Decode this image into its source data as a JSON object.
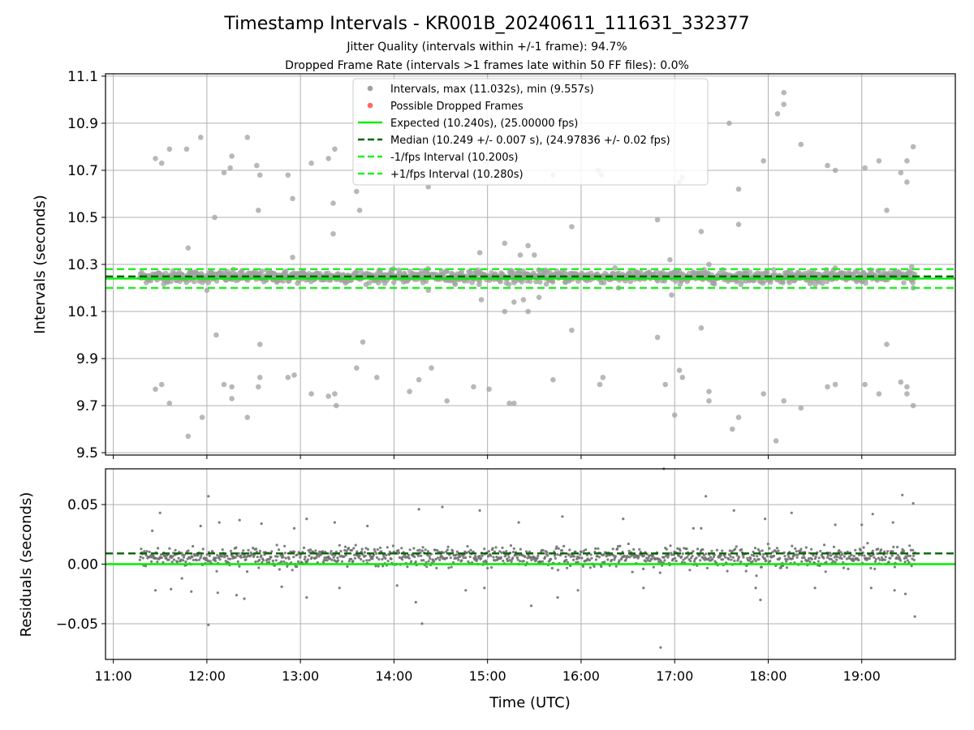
{
  "figure": {
    "title": "Timestamp Intervals - KR001B_20240611_111631_332377",
    "subtitle_1": "Jitter Quality (intervals within +/-1 frame): 94.7%",
    "subtitle_2": "Dropped Frame Rate (intervals >1 frames late within 50 FF files): 0.0%",
    "xlabel": "Time (UTC)"
  },
  "chart_data": [
    {
      "type": "scatter",
      "panel": "top",
      "ylabel": "Intervals (seconds)",
      "xlim": [
        "10:55",
        "20:00"
      ],
      "ylim": [
        9.49,
        11.11
      ],
      "xticks": [
        "11:00",
        "12:00",
        "13:00",
        "14:00",
        "15:00",
        "16:00",
        "17:00",
        "18:00",
        "19:00"
      ],
      "yticks": [
        "9.5",
        "9.7",
        "9.9",
        "10.1",
        "10.3",
        "10.5",
        "10.7",
        "10.9",
        "11.1"
      ],
      "ytick_values": [
        9.5,
        9.7,
        9.9,
        10.1,
        10.3,
        10.5,
        10.7,
        10.9,
        11.1
      ],
      "grid": true,
      "legend_position": "top-center",
      "legend": [
        {
          "label": "Intervals, max (11.032s), min (9.557s)",
          "marker": "dot",
          "color": "#a0a0a0"
        },
        {
          "label": "Possible Dropped Frames",
          "marker": "dot",
          "color": "#ff6666"
        },
        {
          "label": "Expected (10.240s), (25.00000 fps)",
          "marker": "solid",
          "color": "#00ee00"
        },
        {
          "label": "Median (10.249 +/- 0.007 s), (24.97836 +/- 0.02 fps)",
          "marker": "dashed",
          "color": "#006400"
        },
        {
          "label": "-1/fps Interval (10.200s)",
          "marker": "dashed",
          "color": "#22ee22"
        },
        {
          "label": "+1/fps Interval (10.280s)",
          "marker": "dashed",
          "color": "#22ee22"
        }
      ],
      "reference_lines": [
        {
          "y": 10.24,
          "style": "solid",
          "color": "#00ee00"
        },
        {
          "y": 10.249,
          "style": "dashed",
          "color": "#006400"
        },
        {
          "y": 10.2,
          "style": "dashed",
          "color": "#22ee22"
        },
        {
          "y": 10.28,
          "style": "dashed",
          "color": "#22ee22"
        }
      ],
      "start_time": "11:17",
      "end_time": "19:34",
      "point_color": "#a0a0a0",
      "core_band": {
        "center": 10.248,
        "spread": 0.035
      },
      "outliers": [
        [
          "11:27",
          10.75
        ],
        [
          "11:27",
          9.77
        ],
        [
          "11:31",
          10.73
        ],
        [
          "11:31",
          9.79
        ],
        [
          "11:36",
          10.79
        ],
        [
          "11:36",
          9.71
        ],
        [
          "11:47",
          10.79
        ],
        [
          "11:48",
          10.37
        ],
        [
          "11:48",
          9.57
        ],
        [
          "11:56",
          10.84
        ],
        [
          "11:57",
          9.65
        ],
        [
          "12:00",
          10.19
        ],
        [
          "12:05",
          10.5
        ],
        [
          "12:06",
          10.0
        ],
        [
          "12:11",
          10.69
        ],
        [
          "12:11",
          9.79
        ],
        [
          "12:15",
          10.71
        ],
        [
          "12:16",
          10.76
        ],
        [
          "12:16",
          9.78
        ],
        [
          "12:16",
          9.73
        ],
        [
          "12:26",
          10.84
        ],
        [
          "12:26",
          9.65
        ],
        [
          "12:32",
          10.72
        ],
        [
          "12:33",
          10.53
        ],
        [
          "12:33",
          9.78
        ],
        [
          "12:34",
          10.68
        ],
        [
          "12:34",
          9.82
        ],
        [
          "12:34",
          9.96
        ],
        [
          "12:52",
          10.68
        ],
        [
          "12:52",
          9.82
        ],
        [
          "12:55",
          10.58
        ],
        [
          "12:55",
          10.33
        ],
        [
          "12:56",
          9.83
        ],
        [
          "13:07",
          10.73
        ],
        [
          "13:07",
          9.75
        ],
        [
          "13:18",
          10.75
        ],
        [
          "13:18",
          9.74
        ],
        [
          "13:21",
          10.56
        ],
        [
          "13:21",
          10.43
        ],
        [
          "13:22",
          10.79
        ],
        [
          "13:22",
          9.75
        ],
        [
          "13:23",
          9.7
        ],
        [
          "13:36",
          10.61
        ],
        [
          "13:38",
          10.53
        ],
        [
          "13:40",
          9.97
        ],
        [
          "13:36",
          9.86
        ],
        [
          "13:49",
          9.82
        ],
        [
          "14:10",
          9.76
        ],
        [
          "14:16",
          9.81
        ],
        [
          "14:22",
          10.19
        ],
        [
          "14:22",
          10.63
        ],
        [
          "14:24",
          9.86
        ],
        [
          "14:34",
          9.72
        ],
        [
          "14:51",
          9.78
        ],
        [
          "14:55",
          10.35
        ],
        [
          "14:56",
          10.15
        ],
        [
          "15:01",
          9.77
        ],
        [
          "15:11",
          10.39
        ],
        [
          "15:11",
          10.1
        ],
        [
          "15:14",
          9.71
        ],
        [
          "15:17",
          10.14
        ],
        [
          "15:17",
          9.71
        ],
        [
          "15:21",
          10.34
        ],
        [
          "15:23",
          10.15
        ],
        [
          "15:26",
          10.38
        ],
        [
          "15:26",
          10.1
        ],
        [
          "15:30",
          10.34
        ],
        [
          "15:33",
          10.16
        ],
        [
          "15:42",
          10.68
        ],
        [
          "15:42",
          9.81
        ],
        [
          "15:54",
          10.46
        ],
        [
          "15:54",
          10.02
        ],
        [
          "16:11",
          10.7
        ],
        [
          "16:12",
          9.79
        ],
        [
          "16:13",
          10.68
        ],
        [
          "16:14",
          9.82
        ],
        [
          "16:24",
          10.2
        ],
        [
          "16:49",
          10.49
        ],
        [
          "16:49",
          9.99
        ],
        [
          "16:54",
          9.79
        ],
        [
          "16:57",
          10.32
        ],
        [
          "16:58",
          10.17
        ],
        [
          "17:00",
          9.66
        ],
        [
          "17:03",
          10.65
        ],
        [
          "17:03",
          9.85
        ],
        [
          "17:05",
          10.67
        ],
        [
          "17:05",
          9.82
        ],
        [
          "17:17",
          10.44
        ],
        [
          "17:17",
          10.03
        ],
        [
          "17:22",
          10.3
        ],
        [
          "17:22",
          9.76
        ],
        [
          "17:22",
          9.72
        ],
        [
          "17:35",
          10.9
        ],
        [
          "17:37",
          9.6
        ],
        [
          "17:41",
          10.62
        ],
        [
          "17:41",
          10.47
        ],
        [
          "17:41",
          9.65
        ],
        [
          "17:57",
          10.74
        ],
        [
          "17:57",
          9.75
        ],
        [
          "18:06",
          10.94
        ],
        [
          "18:05",
          9.55
        ],
        [
          "18:10",
          11.03
        ],
        [
          "18:10",
          10.98
        ],
        [
          "18:10",
          9.72
        ],
        [
          "18:21",
          10.81
        ],
        [
          "18:21",
          9.69
        ],
        [
          "18:38",
          10.72
        ],
        [
          "18:38",
          9.78
        ],
        [
          "18:43",
          10.7
        ],
        [
          "18:43",
          9.79
        ],
        [
          "19:02",
          10.71
        ],
        [
          "19:02",
          9.79
        ],
        [
          "19:11",
          10.74
        ],
        [
          "19:11",
          9.75
        ],
        [
          "19:16",
          10.53
        ],
        [
          "19:16",
          9.96
        ],
        [
          "19:25",
          10.69
        ],
        [
          "19:25",
          9.8
        ],
        [
          "19:29",
          10.74
        ],
        [
          "19:29",
          10.65
        ],
        [
          "19:29",
          9.78
        ],
        [
          "19:29",
          9.75
        ],
        [
          "19:33",
          10.8
        ],
        [
          "19:33",
          9.7
        ],
        [
          "19:33",
          10.2
        ],
        [
          "19:32",
          10.29
        ]
      ]
    },
    {
      "type": "scatter",
      "panel": "bottom",
      "ylabel": "Residuals (seconds)",
      "xlim": [
        "10:55",
        "20:00"
      ],
      "ylim": [
        -0.08,
        0.08
      ],
      "xticks": [
        "11:00",
        "12:00",
        "13:00",
        "14:00",
        "15:00",
        "16:00",
        "17:00",
        "18:00",
        "19:00"
      ],
      "yticks": [
        "−0.05",
        "0.00",
        "0.05"
      ],
      "ytick_values": [
        -0.05,
        0.0,
        0.05
      ],
      "grid": true,
      "reference_lines": [
        {
          "y": 0.0,
          "style": "solid",
          "color": "#00ee00"
        },
        {
          "y": 0.009,
          "style": "dashed",
          "color": "#006400"
        }
      ],
      "point_color": "#707070",
      "core_band": {
        "center": 0.006,
        "spread": 0.012
      },
      "outliers": [
        [
          "11:25",
          0.028
        ],
        [
          "11:30",
          0.043
        ],
        [
          "11:27",
          -0.022
        ],
        [
          "11:37",
          -0.021
        ],
        [
          "11:44",
          -0.012
        ],
        [
          "11:50",
          -0.023
        ],
        [
          "11:56",
          0.032
        ],
        [
          "12:01",
          0.057
        ],
        [
          "12:01",
          -0.051
        ],
        [
          "12:07",
          -0.024
        ],
        [
          "12:08",
          0.035
        ],
        [
          "12:19",
          -0.026
        ],
        [
          "12:21",
          0.037
        ],
        [
          "12:24",
          -0.029
        ],
        [
          "12:35",
          0.034
        ],
        [
          "12:48",
          -0.019
        ],
        [
          "12:56",
          0.03
        ],
        [
          "13:04",
          0.038
        ],
        [
          "13:04",
          -0.028
        ],
        [
          "13:22",
          0.035
        ],
        [
          "13:25",
          -0.02
        ],
        [
          "13:43",
          0.032
        ],
        [
          "14:02",
          -0.018
        ],
        [
          "14:14",
          -0.032
        ],
        [
          "14:16",
          0.046
        ],
        [
          "14:18",
          -0.05
        ],
        [
          "14:31",
          0.048
        ],
        [
          "14:46",
          -0.022
        ],
        [
          "14:55",
          0.045
        ],
        [
          "14:58",
          -0.02
        ],
        [
          "15:20",
          0.035
        ],
        [
          "15:28",
          -0.035
        ],
        [
          "15:48",
          0.04
        ],
        [
          "15:45",
          -0.028
        ],
        [
          "15:58",
          -0.022
        ],
        [
          "16:27",
          0.038
        ],
        [
          "16:40",
          -0.02
        ],
        [
          "16:53",
          0.08
        ],
        [
          "16:51",
          -0.07
        ],
        [
          "17:12",
          0.03
        ],
        [
          "17:17",
          0.03
        ],
        [
          "17:20",
          0.057
        ],
        [
          "17:38",
          0.045
        ],
        [
          "17:52",
          -0.02
        ],
        [
          "17:58",
          0.038
        ],
        [
          "17:55",
          -0.03
        ],
        [
          "18:15",
          0.043
        ],
        [
          "18:30",
          -0.02
        ],
        [
          "18:43",
          0.033
        ],
        [
          "19:00",
          0.033
        ],
        [
          "19:06",
          -0.02
        ],
        [
          "19:07",
          0.042
        ],
        [
          "19:20",
          0.035
        ],
        [
          "19:21",
          -0.022
        ],
        [
          "19:26",
          0.058
        ],
        [
          "19:28",
          -0.025
        ],
        [
          "19:33",
          0.051
        ],
        [
          "19:34",
          -0.044
        ]
      ]
    }
  ]
}
